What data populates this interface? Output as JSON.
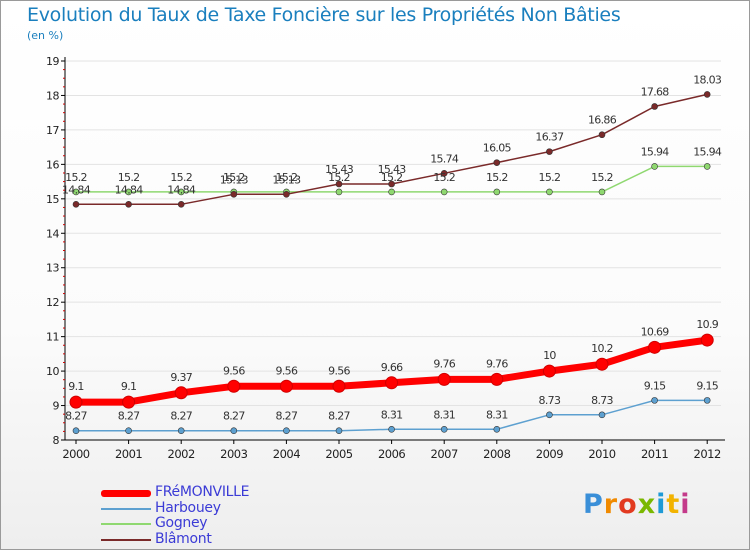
{
  "title": "Evolution du Taux de Taxe Foncière sur les Propriétés Non Bâties",
  "unit_label": "(en %)",
  "brand": "Proxiti",
  "colors": {
    "title": "#1a7fbe",
    "axis": "#000000",
    "grid": "#e3e3e3",
    "legend_text": "#3b3bd6"
  },
  "chart_data": {
    "type": "line",
    "title": "Evolution du Taux de Taxe Foncière sur les Propriétés Non Bâties",
    "ylabel": "(en %)",
    "xlabel": "",
    "x": [
      "2000",
      "2001",
      "2002",
      "2003",
      "2004",
      "2005",
      "2006",
      "2007",
      "2008",
      "2009",
      "2010",
      "2011",
      "2012"
    ],
    "yticks": [
      "8",
      "9",
      "10",
      "11",
      "12",
      "13",
      "14",
      "15",
      "16",
      "17",
      "18",
      "19"
    ],
    "ylim": [
      8,
      19
    ],
    "grid": false,
    "legend_position": "bottom-left",
    "series": [
      {
        "name": "FRéMONVILLE",
        "color": "#ff0000",
        "values": [
          9.1,
          9.1,
          9.37,
          9.56,
          9.56,
          9.56,
          9.66,
          9.76,
          9.76,
          10,
          10.2,
          10.69,
          10.9
        ],
        "labels": [
          "9.1",
          "9.1",
          "9.37",
          "9.56",
          "9.56",
          "9.56",
          "9.66",
          "9.76",
          "9.76",
          "10",
          "10.2",
          "10.69",
          "10.9"
        ]
      },
      {
        "name": "Harbouey",
        "color": "#5da0d0",
        "values": [
          8.27,
          8.27,
          8.27,
          8.27,
          8.27,
          8.27,
          8.31,
          8.31,
          8.31,
          8.73,
          8.73,
          9.15,
          9.15
        ],
        "labels": [
          "8.27",
          "8.27",
          "8.27",
          "8.27",
          "8.27",
          "8.27",
          "8.31",
          "8.31",
          "8.31",
          "8.73",
          "8.73",
          "9.15",
          "9.15"
        ]
      },
      {
        "name": "Gogney",
        "color": "#8fd870",
        "values": [
          15.2,
          15.2,
          15.2,
          15.2,
          15.2,
          15.2,
          15.2,
          15.2,
          15.2,
          15.2,
          15.2,
          15.94,
          15.94
        ],
        "labels": [
          "15.2",
          "15.2",
          "15.2",
          "15.2",
          "15.2",
          "15.2",
          "15.2",
          "15.2",
          "15.2",
          "15.2",
          "15.2",
          "15.94",
          "15.94"
        ]
      },
      {
        "name": "Blâmont",
        "color": "#7a2a2a",
        "values": [
          14.84,
          14.84,
          14.84,
          15.13,
          15.13,
          15.43,
          15.43,
          15.74,
          16.05,
          16.37,
          16.86,
          17.68,
          18.03
        ],
        "labels": [
          "14.84",
          "14.84",
          "14.84",
          "15.13",
          "15.13",
          "15.43",
          "15.43",
          "15.74",
          "16.05",
          "16.37",
          "16.86",
          "17.68",
          "18.03"
        ]
      }
    ]
  }
}
